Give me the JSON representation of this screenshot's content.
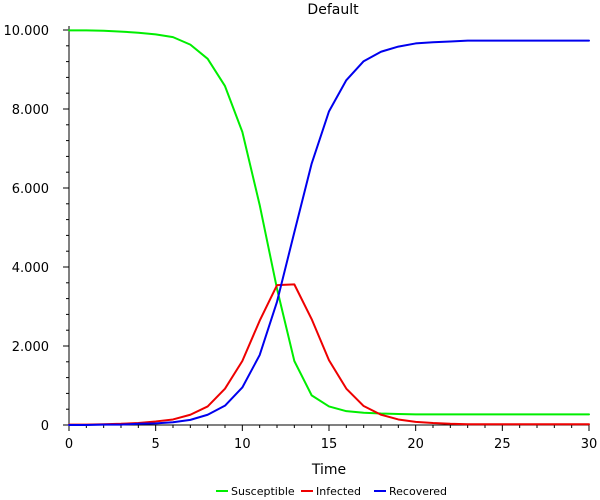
{
  "chart_data": {
    "type": "line",
    "title": "Default",
    "xlabel": "Time",
    "ylabel": "",
    "xlim": [
      0,
      30
    ],
    "ylim": [
      0,
      10000
    ],
    "grid": false,
    "legend_position": "bottom",
    "x_ticks": [
      0,
      5,
      10,
      15,
      20,
      25,
      30
    ],
    "x_tick_labels": [
      "0",
      "5",
      "10",
      "15",
      "20",
      "25",
      "30"
    ],
    "y_ticks": [
      0,
      2000,
      4000,
      6000,
      8000,
      10000
    ],
    "y_tick_labels": [
      "0",
      "2.000",
      "4.000",
      "6.000",
      "8.000",
      "10.000"
    ],
    "x": [
      0,
      1,
      2,
      3,
      4,
      5,
      6,
      7,
      8,
      9,
      10,
      11,
      12,
      13,
      14,
      15,
      16,
      17,
      18,
      19,
      20,
      21,
      22,
      23,
      24,
      25,
      26,
      27,
      28,
      29,
      30
    ],
    "series": [
      {
        "name": "Susceptible",
        "color": "#00ee00",
        "values": [
          9990,
          9990,
          9980,
          9960,
          9930,
          9890,
          9820,
          9630,
          9270,
          8580,
          7420,
          5570,
          3450,
          1620,
          750,
          470,
          350,
          310,
          290,
          280,
          270,
          270,
          270,
          270,
          270,
          270,
          270,
          270,
          270,
          270,
          270
        ]
      },
      {
        "name": "Infected",
        "color": "#ee0000",
        "values": [
          10,
          10,
          20,
          30,
          50,
          90,
          140,
          260,
          470,
          920,
          1620,
          2640,
          3540,
          3560,
          2680,
          1640,
          920,
          480,
          260,
          140,
          80,
          50,
          30,
          20,
          20,
          20,
          20,
          20,
          20,
          20,
          20
        ]
      },
      {
        "name": "Recovered",
        "color": "#0000ee",
        "values": [
          0,
          0,
          10,
          10,
          30,
          40,
          70,
          130,
          260,
          490,
          950,
          1770,
          3120,
          4880,
          6620,
          7940,
          8730,
          9210,
          9450,
          9580,
          9660,
          9690,
          9710,
          9730,
          9730,
          9730,
          9730,
          9730,
          9730,
          9730,
          9730
        ]
      }
    ]
  }
}
